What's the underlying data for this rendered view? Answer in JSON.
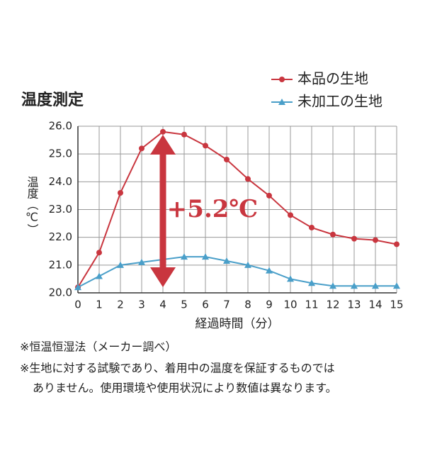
{
  "chart_data": {
    "type": "line",
    "title": "温度測定",
    "y_label": "温度（℃）",
    "x_label": "経過時間（分）",
    "annotation": "+5.2℃",
    "x": [
      0,
      1,
      2,
      3,
      4,
      5,
      6,
      7,
      8,
      9,
      10,
      11,
      12,
      13,
      14,
      15
    ],
    "series": [
      {
        "name": "本品の生地",
        "color": "#c9363f",
        "marker": "circle",
        "values": [
          20.2,
          21.45,
          23.6,
          25.2,
          25.8,
          25.7,
          25.3,
          24.8,
          24.1,
          23.5,
          22.8,
          22.35,
          22.1,
          21.95,
          21.9,
          21.75
        ]
      },
      {
        "name": "未加工の生地",
        "color": "#4a9fc9",
        "marker": "triangle",
        "values": [
          20.2,
          20.6,
          21.0,
          21.1,
          21.2,
          21.3,
          21.3,
          21.15,
          21.0,
          20.8,
          20.5,
          20.35,
          20.25,
          20.25,
          20.25,
          20.25
        ]
      }
    ],
    "xlim": [
      0,
      15
    ],
    "xticks": [
      0,
      1,
      2,
      3,
      4,
      5,
      6,
      7,
      8,
      9,
      10,
      11,
      12,
      13,
      14,
      15
    ],
    "ylim": [
      20,
      26
    ],
    "yticks": [
      {
        "value": 20,
        "label": "20.0"
      },
      {
        "value": 21,
        "label": "21.0"
      },
      {
        "value": 22,
        "label": "22.0"
      },
      {
        "value": 23,
        "label": "23.0"
      },
      {
        "value": 24,
        "label": "24.0"
      },
      {
        "value": 25,
        "label": "25.0"
      },
      {
        "value": 26,
        "label": "26.0"
      }
    ],
    "grid": true
  },
  "notes": [
    "※恒温恒湿法（メーカー調べ）",
    "※生地に対する試験であり、着用中の温度を保証するものでは",
    "ありません。使用環境や使用状況により数値は異なります。"
  ]
}
